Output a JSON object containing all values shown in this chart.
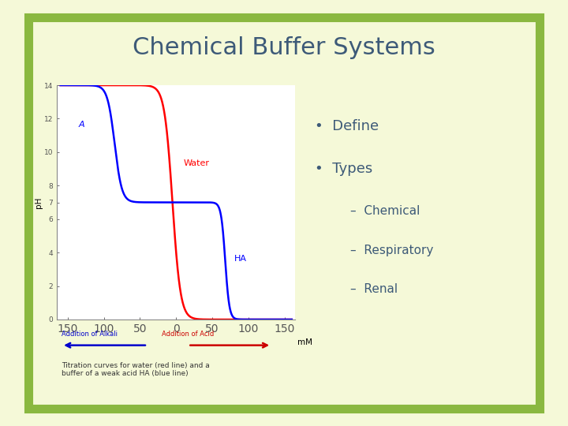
{
  "title": "Chemical Buffer Systems",
  "title_color": "#3d5a78",
  "title_fontsize": 22,
  "bg_outer": "#f5f9d8",
  "bg_slide": "#ffffff",
  "green_border": "#8ab840",
  "bullet_color": "#3d5a78",
  "bullet_items": [
    "Define",
    "Types"
  ],
  "sub_items": [
    "Chemical",
    "Respiratory",
    "Renal"
  ],
  "graph_annotation_water": "Water",
  "graph_annotation_A": "A",
  "graph_annotation_HA": "HA",
  "graph_xlabel": "mM",
  "graph_ylabel": "pH",
  "graph_xticks": [
    -150,
    -100,
    -50,
    0,
    50,
    100,
    150
  ],
  "graph_xtick_labels": [
    "150",
    "100",
    "50",
    "0",
    "50",
    "100",
    "150"
  ],
  "graph_yticks": [
    0,
    2,
    4,
    6,
    7,
    8,
    10,
    12,
    14
  ],
  "graph_ylim": [
    0,
    14
  ],
  "graph_xlim": [
    -165,
    165
  ],
  "arrow_alkali_color": "#0000cc",
  "arrow_acid_color": "#cc0000",
  "label_alkali": "Addition of Alkali",
  "label_acid": "Addition of Acid",
  "caption": "Titration curves for water (red line) and a\nbuffer of a weak acid HA (blue line)"
}
